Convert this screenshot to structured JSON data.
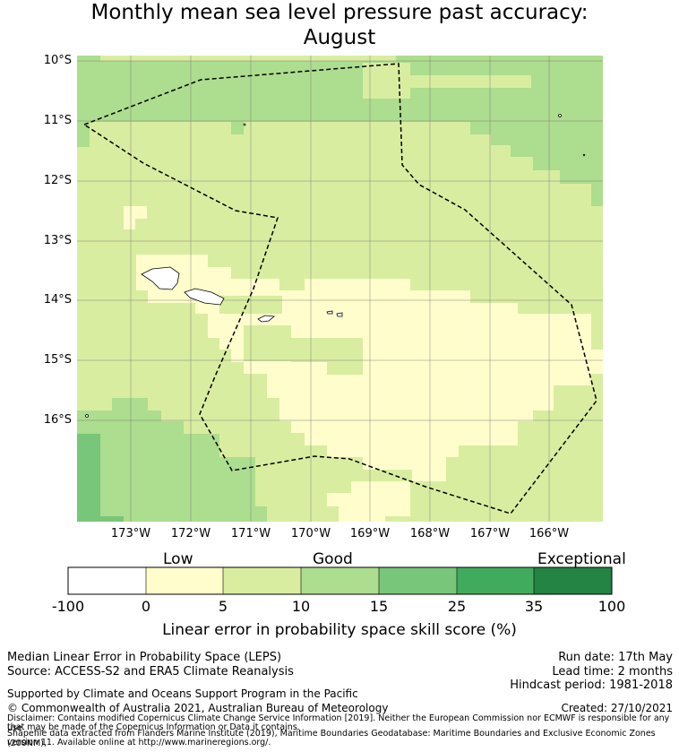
{
  "title": {
    "line1": "Monthly mean sea level pressure past accuracy:",
    "line2": "August"
  },
  "map": {
    "lat_labels": [
      "10°S",
      "11°S",
      "12°S",
      "13°S",
      "14°S",
      "15°S",
      "16°S"
    ],
    "lon_labels": [
      "173°W",
      "172°W",
      "171°W",
      "170°W",
      "169°W",
      "168°W",
      "167°W",
      "166°W"
    ],
    "skill_legend_regions": "categorical shaded grid of LEPS skill score",
    "colors": {
      "very_low": "#ffffff",
      "low": "#fffdcc",
      "fair": "#d9eda0",
      "good": "#addd8e",
      "very_good": "#78c679",
      "excellent": "#41ab5d",
      "exceptional": "#238443"
    }
  },
  "colorbar": {
    "category_labels": [
      "Low",
      "Good",
      "Exceptional"
    ],
    "ticks": [
      "-100",
      "0",
      "5",
      "10",
      "15",
      "25",
      "35",
      "100"
    ],
    "title": "Linear error in probability space skill score (%)"
  },
  "footer": {
    "left_line1": "Median Linear Error in Probability Space (LEPS)",
    "left_line2": "Source: ACCESS-S2 and ERA5 Climate Reanalysis",
    "right_line1": "Run date: 17th May",
    "right_line2": "Lead time: 2 months",
    "right_line3": "Hindcast period: 1981-2018",
    "support": "Supported by Climate and Oceans Support Program in the Pacific",
    "copyright": "© Commonwealth of Australia 2021, Australian Bureau of Meteorology",
    "created": "Created: 27/10/2021",
    "disclaimer1": "Disclaimer: Contains modified Copernicus Climate Change Service Information [2019]. Neither the European Commission nor ECMWF is responsible for any use",
    "disclaimer2": "that may be made of the Copernicus Information or Data it contains.",
    "shapefile1": "Shapefile data extracted from Flanders Marine Institute (2019), Maritime Boundaries Geodatabase: Maritime Boundaries and Exclusive Economic Zones (200NM),",
    "shapefile2": "version 11. Available online at http://www.marineregions.org/."
  }
}
